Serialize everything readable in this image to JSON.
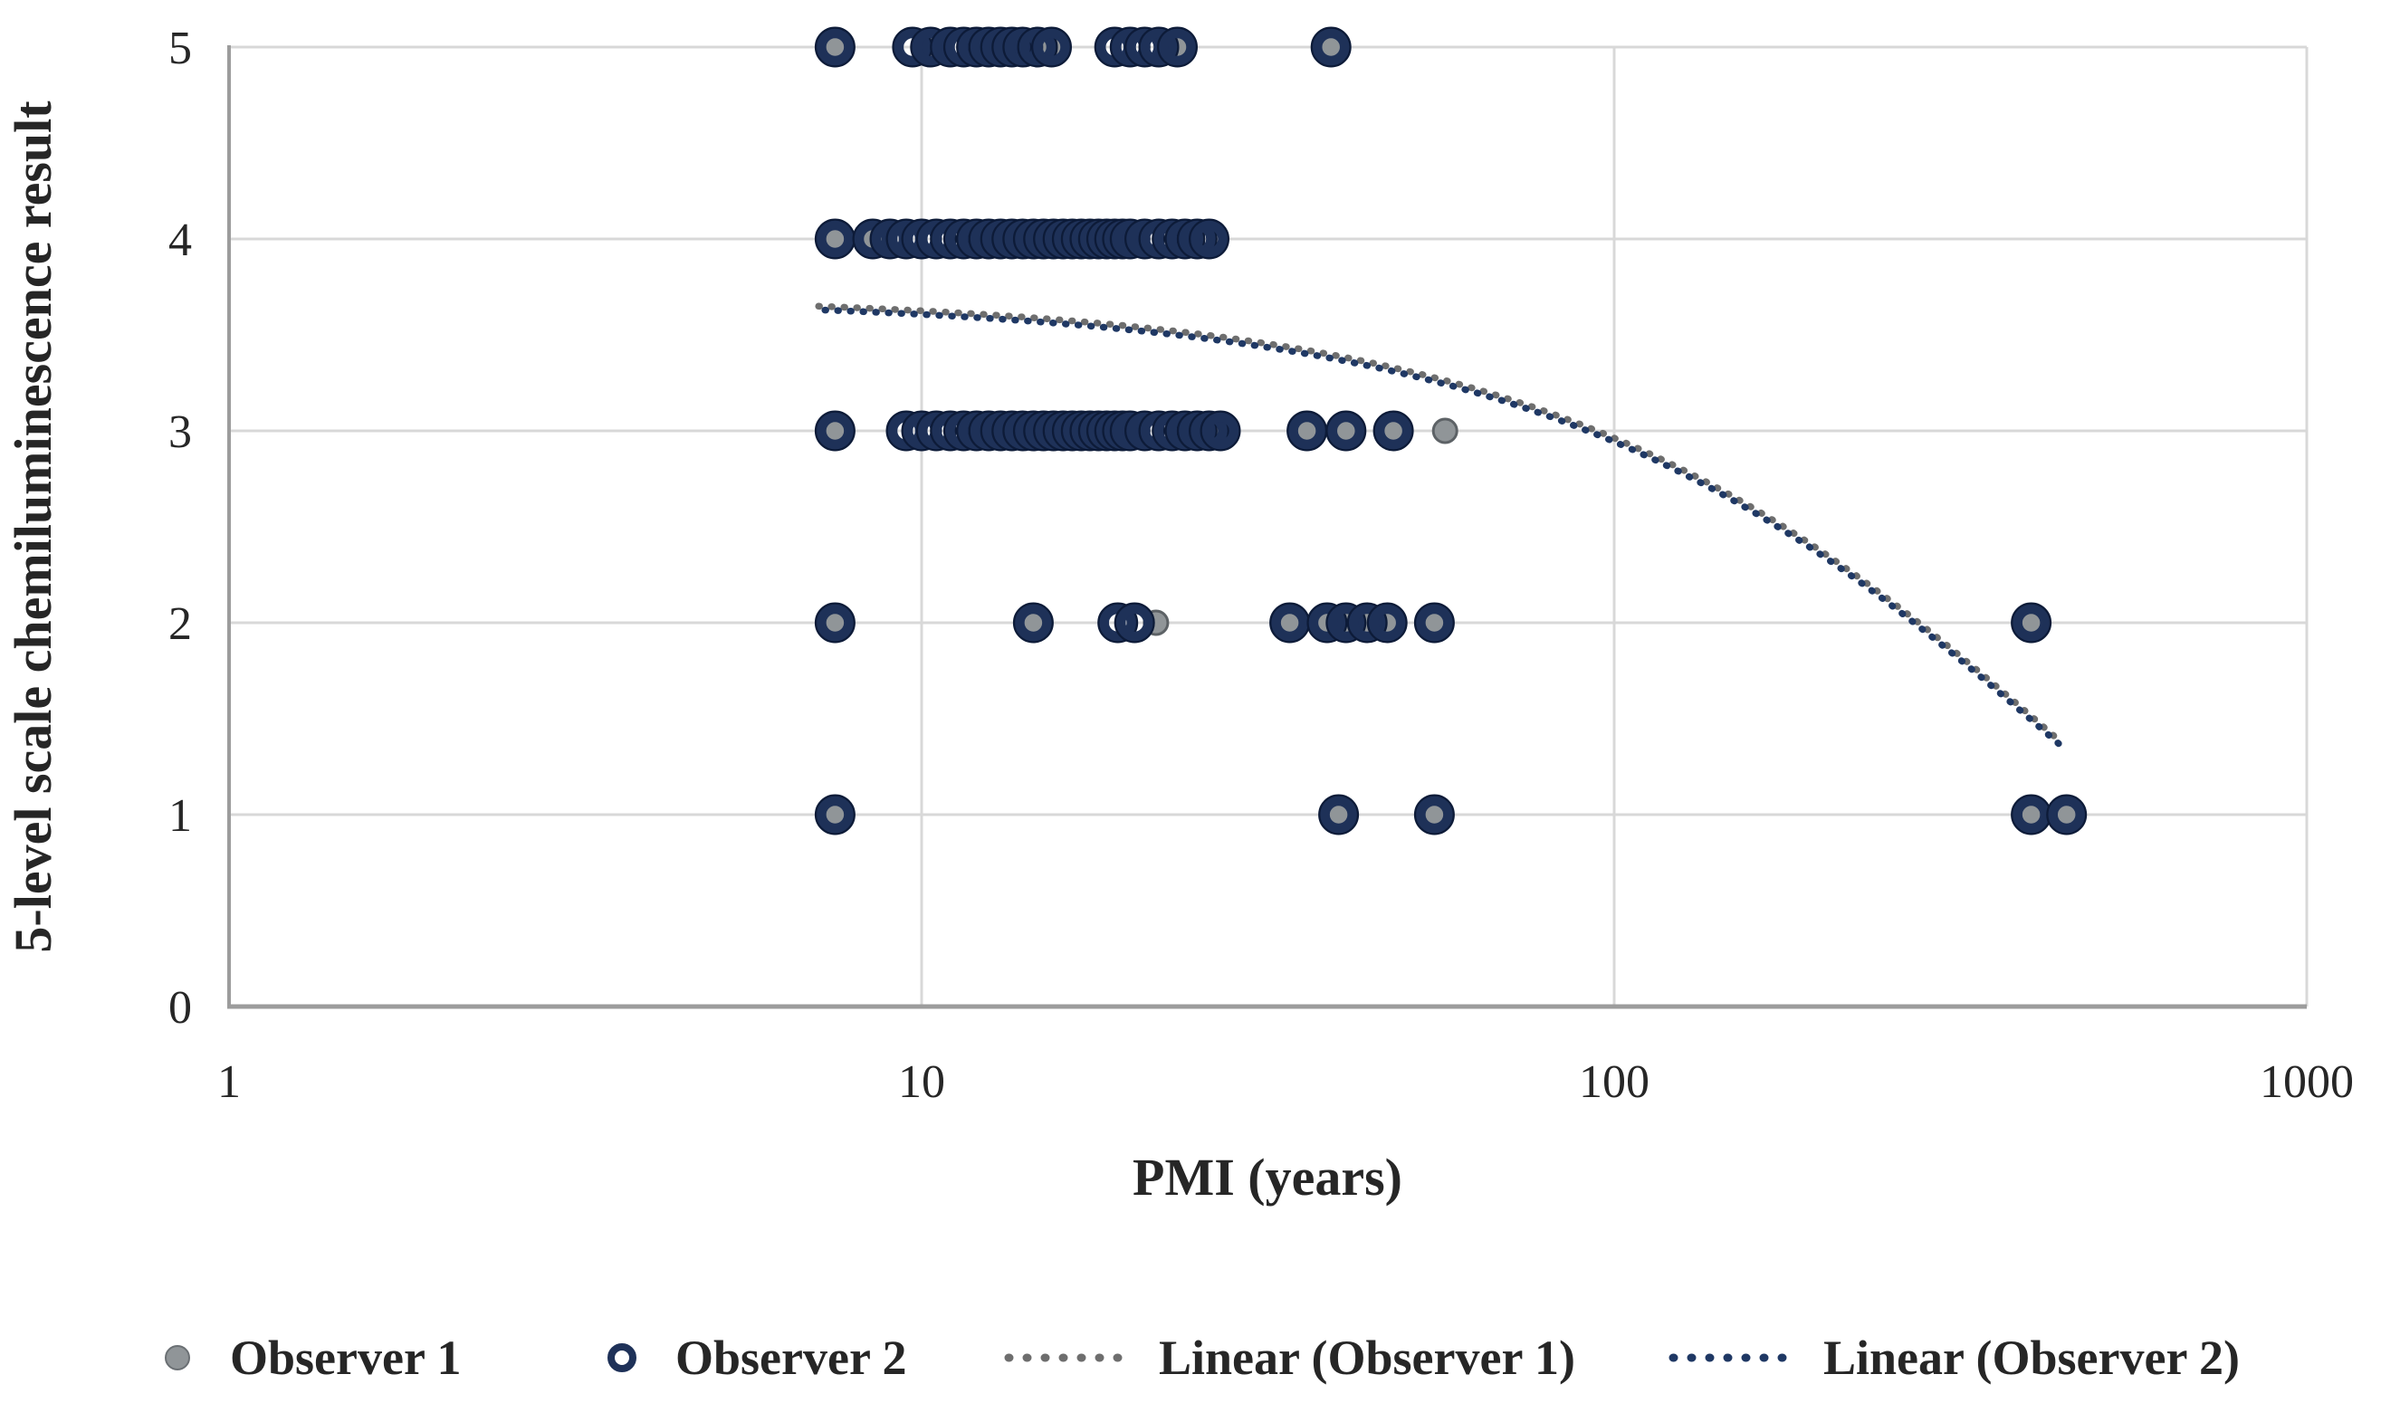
{
  "chart_data": {
    "type": "scatter",
    "title": "",
    "xlabel": "PMI (years)",
    "ylabel": "5-level scale chemiluminescence result",
    "x_scale": "log",
    "xlim": [
      1,
      1000
    ],
    "ylim": [
      0,
      5
    ],
    "x_ticks": [
      1,
      10,
      100,
      1000
    ],
    "y_ticks": [
      0,
      1,
      2,
      3,
      4,
      5
    ],
    "grid": true,
    "legend_position": "bottom",
    "legend": [
      "Observer 1",
      "Observer 2",
      "Linear (Observer 1)",
      "Linear (Observer 2)"
    ],
    "colors": {
      "observer1_fill": "#909598",
      "observer1_edge": "#5d6266",
      "observer2_ring": "#1e3158",
      "observer2_edge": "#0d1b38",
      "trend_observer1": "#6e6e6e",
      "trend_observer2": "#1f3864",
      "gridline": "#d8d8d8",
      "axis_line": "#9c9c9c",
      "text": "#262626"
    },
    "series": [
      {
        "name": "Observer 1",
        "type": "scatter",
        "marker": "filled-gray-circle",
        "points": [
          [
            7.5,
            5
          ],
          [
            10.3,
            5
          ],
          [
            15.4,
            5
          ],
          [
            23.4,
            5
          ],
          [
            39,
            5
          ],
          [
            7.5,
            4
          ],
          [
            8.5,
            4
          ],
          [
            15,
            4
          ],
          [
            7.5,
            3
          ],
          [
            27,
            3
          ],
          [
            36,
            3
          ],
          [
            41,
            3
          ],
          [
            48,
            3
          ],
          [
            57,
            3
          ],
          [
            7.5,
            2
          ],
          [
            14.5,
            2
          ],
          [
            21.8,
            2
          ],
          [
            34,
            2
          ],
          [
            38.5,
            2
          ],
          [
            41,
            2
          ],
          [
            44,
            2
          ],
          [
            47,
            2
          ],
          [
            55,
            2
          ],
          [
            400,
            2
          ],
          [
            7.5,
            1
          ],
          [
            40,
            1
          ],
          [
            55,
            1
          ],
          [
            400,
            1
          ],
          [
            450,
            1
          ]
        ]
      },
      {
        "name": "Observer 2",
        "type": "scatter",
        "marker": "open-navy-circle",
        "points": [
          [
            7.5,
            5
          ],
          [
            9.7,
            5
          ],
          [
            10.3,
            5
          ],
          [
            11,
            5
          ],
          [
            11.5,
            5
          ],
          [
            12,
            5
          ],
          [
            12.5,
            5
          ],
          [
            13,
            5
          ],
          [
            13.5,
            5
          ],
          [
            14,
            5
          ],
          [
            14.7,
            5
          ],
          [
            15.4,
            5
          ],
          [
            19,
            5
          ],
          [
            20,
            5
          ],
          [
            21,
            5
          ],
          [
            22,
            5
          ],
          [
            23.4,
            5
          ],
          [
            39,
            5
          ],
          [
            7.5,
            4
          ],
          [
            8.5,
            4
          ],
          [
            9,
            4
          ],
          [
            9.5,
            4
          ],
          [
            10,
            4
          ],
          [
            10.5,
            4
          ],
          [
            11,
            4
          ],
          [
            11.5,
            4
          ],
          [
            12,
            4
          ],
          [
            12.5,
            4
          ],
          [
            13,
            4
          ],
          [
            13.5,
            4
          ],
          [
            14,
            4
          ],
          [
            14.5,
            4
          ],
          [
            15,
            4
          ],
          [
            15.5,
            4
          ],
          [
            16,
            4
          ],
          [
            16.5,
            4
          ],
          [
            17,
            4
          ],
          [
            17.5,
            4
          ],
          [
            18,
            4
          ],
          [
            18.5,
            4
          ],
          [
            19,
            4
          ],
          [
            19.5,
            4
          ],
          [
            20,
            4
          ],
          [
            21,
            4
          ],
          [
            22,
            4
          ],
          [
            23,
            4
          ],
          [
            24,
            4
          ],
          [
            25,
            4
          ],
          [
            26,
            4
          ],
          [
            7.5,
            3
          ],
          [
            9.5,
            3
          ],
          [
            10,
            3
          ],
          [
            10.5,
            3
          ],
          [
            11,
            3
          ],
          [
            11.5,
            3
          ],
          [
            12,
            3
          ],
          [
            12.5,
            3
          ],
          [
            13,
            3
          ],
          [
            13.5,
            3
          ],
          [
            14,
            3
          ],
          [
            14.5,
            3
          ],
          [
            15,
            3
          ],
          [
            15.5,
            3
          ],
          [
            16,
            3
          ],
          [
            16.5,
            3
          ],
          [
            17,
            3
          ],
          [
            17.5,
            3
          ],
          [
            18,
            3
          ],
          [
            18.5,
            3
          ],
          [
            19,
            3
          ],
          [
            19.5,
            3
          ],
          [
            20,
            3
          ],
          [
            21,
            3
          ],
          [
            22,
            3
          ],
          [
            23,
            3
          ],
          [
            24,
            3
          ],
          [
            25,
            3
          ],
          [
            26,
            3
          ],
          [
            27,
            3
          ],
          [
            36,
            3
          ],
          [
            41,
            3
          ],
          [
            48,
            3
          ],
          [
            7.5,
            2
          ],
          [
            14.5,
            2
          ],
          [
            19.2,
            2
          ],
          [
            20.3,
            2
          ],
          [
            34,
            2
          ],
          [
            38.5,
            2
          ],
          [
            41,
            2
          ],
          [
            44,
            2
          ],
          [
            47,
            2
          ],
          [
            55,
            2
          ],
          [
            400,
            2
          ],
          [
            7.5,
            1
          ],
          [
            40,
            1
          ],
          [
            55,
            1
          ],
          [
            400,
            1
          ],
          [
            450,
            1
          ]
        ]
      },
      {
        "name": "Linear (Observer 1)",
        "type": "trendline",
        "style": "dotted",
        "dash_offset": 0,
        "dy": -2
      },
      {
        "name": "Linear (Observer 2)",
        "type": "trendline",
        "style": "dotted",
        "dash_offset": 7,
        "dy": 2
      }
    ],
    "trend": {
      "p_start": 7.1,
      "p_end": 450,
      "v_start": 3.64,
      "k": 0.00225
    }
  }
}
